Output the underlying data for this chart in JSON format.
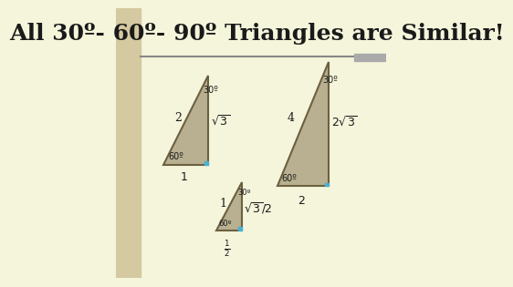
{
  "bg_color": "#f5f5dc",
  "left_panel_color": "#d4c9a0",
  "title": "All 30º- 60º- 90º Triangles are Similar!",
  "title_fontsize": 18,
  "title_color": "#1a1a1a",
  "triangle_fill": "#b8b090",
  "triangle_edge": "#6b6040",
  "right_angle_color": "#4ab0d0",
  "line_color": "#888888",
  "bar_color": "#aaaaaa"
}
